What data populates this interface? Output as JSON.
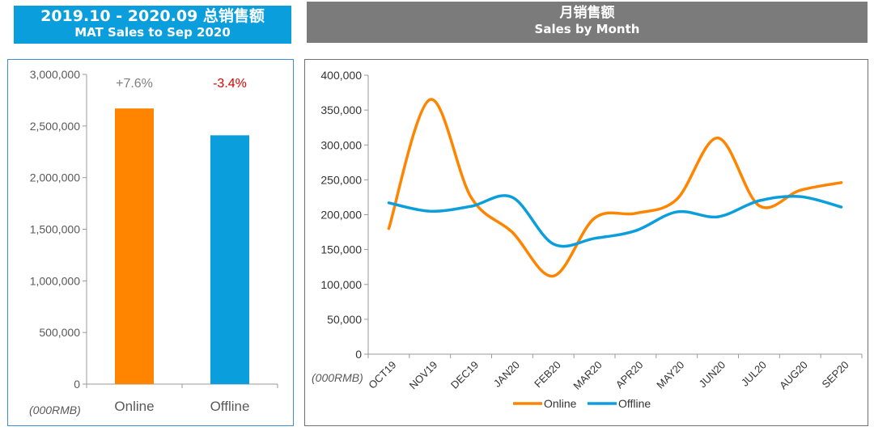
{
  "left_header": {
    "line1": "2019.10 - 2020.09 总销售额",
    "line2": "MAT Sales to Sep 2020"
  },
  "right_header": {
    "line1": "月销售额",
    "line2": "Sales by Month"
  },
  "chart_data": [
    {
      "type": "bar",
      "unit_label": "(000RMB)",
      "categories": [
        "Online",
        "Offline"
      ],
      "values": [
        2670000,
        2410000
      ],
      "colors": [
        "#ff8400",
        "#0a9fdc"
      ],
      "data_labels": [
        "+7.6%",
        "-3.4%"
      ],
      "data_label_colors": [
        "#808080",
        "#e00000"
      ],
      "yticks": [
        "0",
        "500,000",
        "1,000,000",
        "1,500,000",
        "2,000,000",
        "2,500,000",
        "3,000,000"
      ],
      "ylim": [
        0,
        3000000
      ],
      "grid": false
    },
    {
      "type": "line",
      "unit_label": "(000RMB)",
      "categories": [
        "OCT19",
        "NOV19",
        "DEC19",
        "JAN20",
        "FEB20",
        "MAR20",
        "APR20",
        "MAY20",
        "JUN20",
        "JUL20",
        "AUG20",
        "SEP20"
      ],
      "series": [
        {
          "name": "Online",
          "color": "#ff8400",
          "values": [
            180000,
            365000,
            225000,
            175000,
            112000,
            195000,
            202000,
            222000,
            310000,
            213000,
            235000,
            246000
          ]
        },
        {
          "name": "Offline",
          "color": "#0a9fdc",
          "values": [
            217000,
            205000,
            212000,
            225000,
            158000,
            166000,
            177000,
            204000,
            197000,
            220000,
            226000,
            211000
          ]
        }
      ],
      "yticks": [
        "0",
        "50,000",
        "100,000",
        "150,000",
        "200,000",
        "250,000",
        "300,000",
        "350,000",
        "400,000"
      ],
      "ylim": [
        0,
        400000
      ],
      "legend_position": "bottom",
      "grid": false
    }
  ]
}
